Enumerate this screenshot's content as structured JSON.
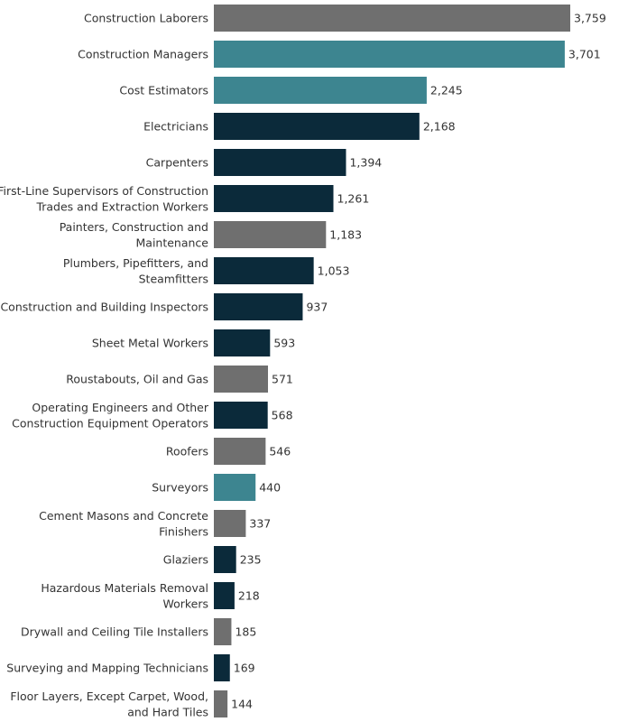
{
  "chart_data": {
    "type": "bar",
    "orientation": "horizontal",
    "title": "",
    "xlabel": "",
    "ylabel": "",
    "grid": false,
    "legend": "none",
    "xlim": [
      0,
      3759
    ],
    "categories": [
      [
        "Construction Laborers"
      ],
      [
        "Construction Managers"
      ],
      [
        "Cost Estimators"
      ],
      [
        "Electricians"
      ],
      [
        "Carpenters"
      ],
      [
        "First-Line Supervisors of Construction",
        "Trades and Extraction Workers"
      ],
      [
        "Painters, Construction and",
        "Maintenance"
      ],
      [
        "Plumbers, Pipefitters, and",
        "Steamfitters"
      ],
      [
        "Construction and Building Inspectors"
      ],
      [
        "Sheet Metal Workers"
      ],
      [
        "Roustabouts, Oil and Gas"
      ],
      [
        "Operating Engineers and Other",
        "Construction Equipment Operators"
      ],
      [
        "Roofers"
      ],
      [
        "Surveyors"
      ],
      [
        "Cement Masons and Concrete",
        "Finishers"
      ],
      [
        "Glaziers"
      ],
      [
        "Hazardous Materials Removal",
        "Workers"
      ],
      [
        "Drywall and Ceiling Tile Installers"
      ],
      [
        "Surveying and Mapping Technicians"
      ],
      [
        "Floor Layers, Except Carpet, Wood,",
        "and Hard Tiles"
      ]
    ],
    "values": [
      3759,
      3701,
      2245,
      2168,
      1394,
      1261,
      1183,
      1053,
      937,
      593,
      571,
      568,
      546,
      440,
      337,
      235,
      218,
      185,
      169,
      144
    ],
    "value_labels": [
      "3,759",
      "3,701",
      "2,245",
      "2,168",
      "1,394",
      "1,261",
      "1,183",
      "1,053",
      "937",
      "593",
      "571",
      "568",
      "546",
      "440",
      "337",
      "235",
      "218",
      "185",
      "169",
      "144"
    ],
    "color_groups": [
      "gray",
      "teal",
      "teal",
      "navy",
      "navy",
      "navy",
      "gray",
      "navy",
      "navy",
      "navy",
      "gray",
      "navy",
      "gray",
      "teal",
      "gray",
      "navy",
      "navy",
      "gray",
      "navy",
      "gray"
    ],
    "colors": {
      "gray": "#6f6f6f",
      "teal": "#3d8590",
      "navy": "#0b2a3a"
    }
  }
}
